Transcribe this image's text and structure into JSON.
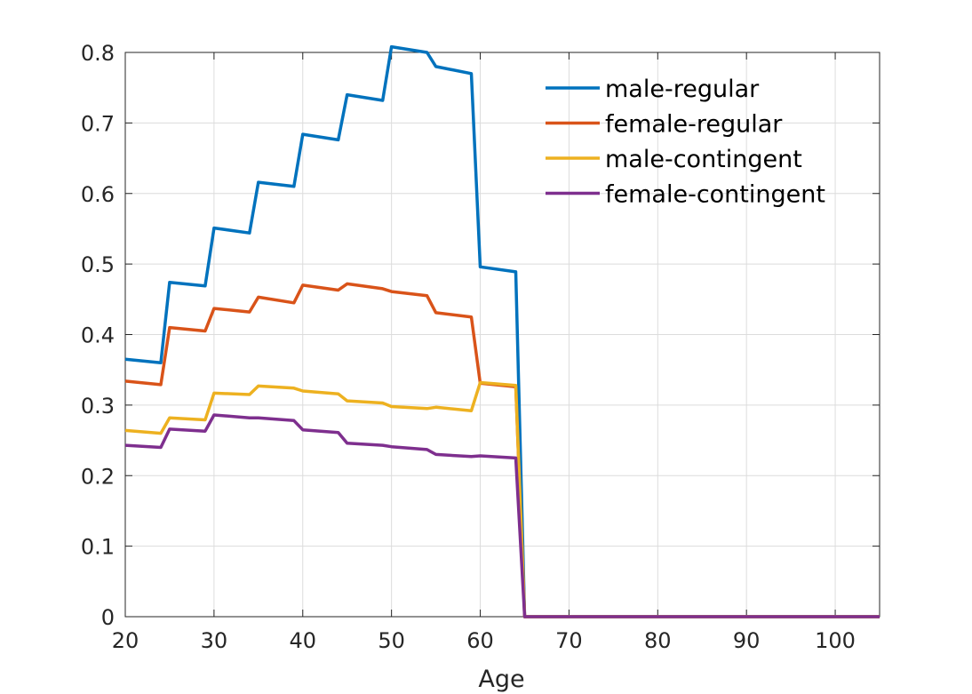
{
  "chart_data": {
    "type": "line",
    "title": "",
    "xlabel": "Age",
    "ylabel": "",
    "xlim": [
      20,
      105
    ],
    "ylim": [
      0,
      0.8
    ],
    "xticks": [
      "20",
      "30",
      "40",
      "50",
      "60",
      "70",
      "80",
      "90",
      "100"
    ],
    "yticks": [
      "0",
      "0.1",
      "0.2",
      "0.3",
      "0.4",
      "0.5",
      "0.6",
      "0.7",
      "0.8"
    ],
    "grid": true,
    "legend_position": "top-right",
    "series": [
      {
        "name": "male-regular",
        "color": "#0072BD",
        "points": [
          [
            20,
            0.365
          ],
          [
            24,
            0.36
          ],
          [
            25,
            0.474
          ],
          [
            29,
            0.469
          ],
          [
            30,
            0.551
          ],
          [
            34,
            0.544
          ],
          [
            35,
            0.616
          ],
          [
            39,
            0.61
          ],
          [
            40,
            0.684
          ],
          [
            44,
            0.676
          ],
          [
            45,
            0.74
          ],
          [
            49,
            0.732
          ],
          [
            50,
            0.808
          ],
          [
            54,
            0.8
          ],
          [
            55,
            0.78
          ],
          [
            59,
            0.77
          ],
          [
            60,
            0.496
          ],
          [
            64,
            0.489
          ],
          [
            65,
            0
          ],
          [
            105,
            0
          ]
        ]
      },
      {
        "name": "female-regular",
        "color": "#D95319",
        "points": [
          [
            20,
            0.334
          ],
          [
            24,
            0.329
          ],
          [
            25,
            0.41
          ],
          [
            29,
            0.405
          ],
          [
            30,
            0.437
          ],
          [
            34,
            0.432
          ],
          [
            35,
            0.453
          ],
          [
            39,
            0.445
          ],
          [
            40,
            0.47
          ],
          [
            44,
            0.463
          ],
          [
            45,
            0.472
          ],
          [
            49,
            0.465
          ],
          [
            50,
            0.461
          ],
          [
            54,
            0.455
          ],
          [
            55,
            0.431
          ],
          [
            59,
            0.425
          ],
          [
            60,
            0.331
          ],
          [
            64,
            0.326
          ],
          [
            65,
            0
          ],
          [
            105,
            0
          ]
        ]
      },
      {
        "name": "male-contingent",
        "color": "#EDB120",
        "points": [
          [
            20,
            0.264
          ],
          [
            24,
            0.26
          ],
          [
            25,
            0.282
          ],
          [
            29,
            0.279
          ],
          [
            30,
            0.317
          ],
          [
            34,
            0.315
          ],
          [
            35,
            0.327
          ],
          [
            39,
            0.324
          ],
          [
            40,
            0.32
          ],
          [
            44,
            0.316
          ],
          [
            45,
            0.306
          ],
          [
            49,
            0.303
          ],
          [
            50,
            0.298
          ],
          [
            54,
            0.295
          ],
          [
            55,
            0.297
          ],
          [
            59,
            0.292
          ],
          [
            60,
            0.332
          ],
          [
            64,
            0.328
          ],
          [
            65,
            0
          ],
          [
            105,
            0
          ]
        ]
      },
      {
        "name": "female-contingent",
        "color": "#7E2F8E",
        "points": [
          [
            20,
            0.243
          ],
          [
            24,
            0.24
          ],
          [
            25,
            0.266
          ],
          [
            29,
            0.263
          ],
          [
            30,
            0.286
          ],
          [
            34,
            0.282
          ],
          [
            35,
            0.282
          ],
          [
            39,
            0.278
          ],
          [
            40,
            0.265
          ],
          [
            44,
            0.261
          ],
          [
            45,
            0.246
          ],
          [
            49,
            0.243
          ],
          [
            50,
            0.241
          ],
          [
            54,
            0.237
          ],
          [
            55,
            0.23
          ],
          [
            59,
            0.227
          ],
          [
            60,
            0.228
          ],
          [
            64,
            0.225
          ],
          [
            65,
            0
          ],
          [
            105,
            0
          ]
        ]
      }
    ]
  }
}
